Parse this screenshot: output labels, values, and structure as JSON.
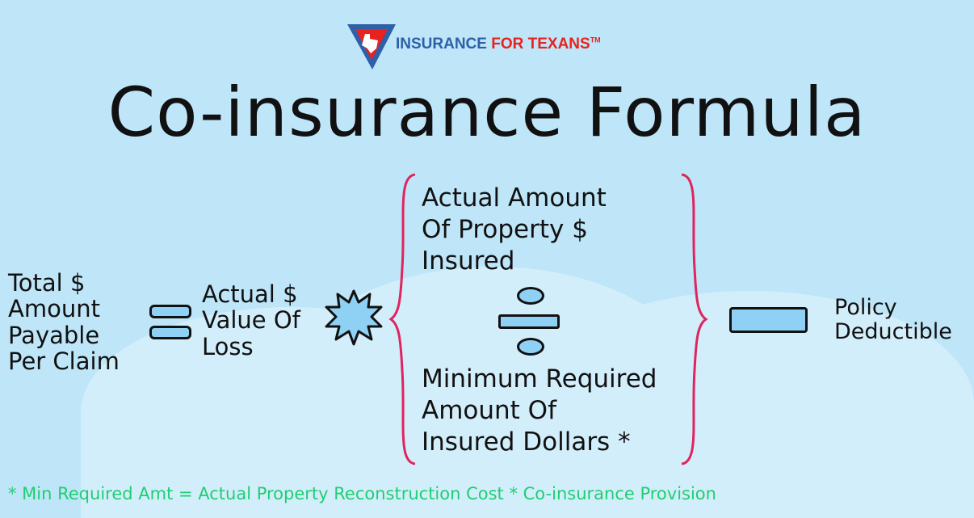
{
  "logo": {
    "text_blue": "INSURANCE",
    "text_red": "FOR TEXANS",
    "mark": "TM"
  },
  "title": "Co-insurance Formula",
  "formula": {
    "left_term": "Total $\nAmount\nPayable\nPer Claim",
    "equals_icon": "equals-icon",
    "value_term": "Actual $\nValue Of\nLoss",
    "multiply_icon": "starburst-multiply-icon",
    "numerator": "Actual Amount\nOf Property $\nInsured",
    "divide_icon": "divide-icon",
    "denominator": "Minimum Required\nAmount Of\nInsured Dollars *",
    "minus_icon": "minus-icon",
    "right_term": "Policy\nDeductible"
  },
  "footnote": "* Min Required Amt = Actual Property Reconstruction Cost * Co-insurance Provision",
  "colors": {
    "background": "#bee6f8",
    "brace": "#e0245e",
    "footnote": "#1fce72",
    "logo_blue": "#2f5fa8",
    "logo_red": "#e8221f"
  }
}
